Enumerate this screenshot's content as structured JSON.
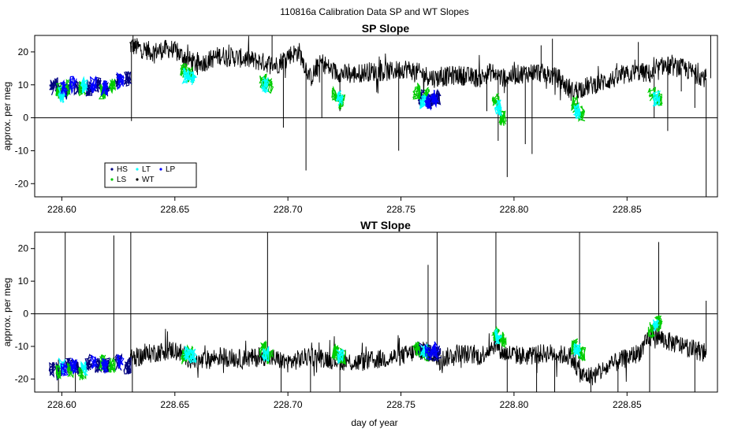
{
  "figure": {
    "suptitle": "110816a   Calibration Data SP and WT Slopes",
    "xlabel": "day of year"
  },
  "chart_data": [
    {
      "type": "line",
      "title": "SP Slope",
      "ylabel": "approx. per meg",
      "xlim": [
        228.588,
        228.89
      ],
      "ylim": [
        -24,
        25
      ],
      "xticks": [
        228.6,
        228.65,
        228.7,
        228.75,
        228.8,
        228.85
      ],
      "xtick_labels": [
        "228.60",
        "228.65",
        "228.70",
        "228.75",
        "228.80",
        "228.85"
      ],
      "yticks": [
        -20,
        -10,
        0,
        10,
        20
      ],
      "ytick_labels": [
        "-20",
        "-10",
        "0",
        "10",
        "20"
      ],
      "hline": 0,
      "legend": {
        "placement": "bottom-left",
        "entries": [
          {
            "label": "HS",
            "color": "#000080"
          },
          {
            "label": "LT",
            "color": "#00ffff"
          },
          {
            "label": "LP",
            "color": "#0000ff"
          },
          {
            "label": "LS",
            "color": "#00cc00"
          },
          {
            "label": "WT",
            "color": "#000000"
          }
        ]
      },
      "series": [
        {
          "name": "WT",
          "color": "#000000",
          "x": [
            228.63,
            228.64,
            228.648,
            228.66,
            228.67,
            228.68,
            228.688,
            228.695,
            228.7,
            228.705,
            228.71,
            228.715,
            228.72,
            228.728,
            228.735,
            228.745,
            228.752,
            228.765,
            228.775,
            228.785,
            228.79,
            228.795,
            228.8,
            228.81,
            228.82,
            228.825,
            228.835,
            228.845,
            228.855,
            228.862,
            228.866,
            228.875,
            228.885
          ],
          "y": [
            22,
            20,
            21,
            16,
            19,
            18,
            17,
            16,
            19,
            20,
            12,
            17,
            14,
            13,
            14,
            14,
            15,
            12,
            13,
            12,
            14,
            12,
            13,
            14,
            12,
            8,
            10,
            12,
            14,
            13,
            16,
            15,
            12
          ],
          "spikes": [
            [
              228.6308,
              -1
            ],
            [
              228.6315,
              25
            ],
            [
              228.66,
              13
            ],
            [
              228.693,
              25
            ],
            [
              228.698,
              -3
            ],
            [
              228.708,
              -16
            ],
            [
              228.715,
              0
            ],
            [
              228.723,
              2
            ],
            [
              228.749,
              -10
            ],
            [
              228.788,
              2
            ],
            [
              228.793,
              -7
            ],
            [
              228.797,
              -18
            ],
            [
              228.805,
              -8
            ],
            [
              228.808,
              -11
            ],
            [
              228.812,
              22
            ],
            [
              228.817,
              24
            ],
            [
              228.828,
              2
            ],
            [
              228.855,
              23
            ],
            [
              228.862,
              0
            ],
            [
              228.868,
              -4
            ],
            [
              228.874,
              8
            ],
            [
              228.88,
              3
            ],
            [
              228.885,
              -24
            ],
            [
              228.887,
              25
            ]
          ]
        },
        {
          "name": "HS",
          "color": "#000080",
          "x": [
            228.596,
            228.598,
            228.602,
            228.607,
            228.612,
            228.616,
            228.62,
            228.625,
            228.629,
            228.759,
            228.763,
            228.766
          ],
          "y": [
            9,
            10,
            8,
            9,
            9,
            10,
            9,
            11,
            12,
            6,
            5,
            6
          ]
        },
        {
          "name": "LS",
          "color": "#00cc00",
          "x": [
            228.599,
            228.603,
            228.609,
            228.618,
            228.622,
            228.654,
            228.657,
            228.689,
            228.692,
            228.721,
            228.724,
            228.757,
            228.761,
            228.792,
            228.795,
            228.827,
            228.83,
            228.861,
            228.864
          ],
          "y": [
            8,
            9,
            9,
            8,
            10,
            14,
            13,
            11,
            10,
            7,
            5,
            8,
            7,
            5,
            0,
            4,
            1,
            7,
            6
          ]
        },
        {
          "name": "LT",
          "color": "#00ffff",
          "x": [
            228.6,
            228.61,
            228.655,
            228.658,
            228.69,
            228.723,
            228.76,
            228.793,
            228.828,
            228.863
          ],
          "y": [
            7,
            10,
            13,
            12,
            10,
            6,
            5,
            3,
            2,
            6
          ]
        },
        {
          "name": "LP",
          "color": "#0000ff",
          "x": [
            228.601,
            228.605,
            228.614,
            228.619,
            228.626,
            228.762,
            228.765
          ],
          "y": [
            9,
            10,
            10,
            9,
            11,
            5,
            6
          ]
        }
      ]
    },
    {
      "type": "line",
      "title": "WT Slope",
      "ylabel": "approx. per meg",
      "xlim": [
        228.588,
        228.89
      ],
      "ylim": [
        -24,
        25
      ],
      "xticks": [
        228.6,
        228.65,
        228.7,
        228.75,
        228.8,
        228.85
      ],
      "xtick_labels": [
        "228.60",
        "228.65",
        "228.70",
        "228.75",
        "228.80",
        "228.85"
      ],
      "yticks": [
        -20,
        -10,
        0,
        10,
        20
      ],
      "ytick_labels": [
        "-20",
        "-10",
        "0",
        "10",
        "20"
      ],
      "hline": 0,
      "series": [
        {
          "name": "WT",
          "color": "#000000",
          "x": [
            228.63,
            228.64,
            228.65,
            228.66,
            228.67,
            228.68,
            228.69,
            228.7,
            228.71,
            228.72,
            228.73,
            228.74,
            228.75,
            228.76,
            228.768,
            228.775,
            228.785,
            228.792,
            228.795,
            228.805,
            228.815,
            228.825,
            228.83,
            228.835,
            228.845,
            228.855,
            228.862,
            228.866,
            228.875,
            228.885
          ],
          "y": [
            -14,
            -12,
            -11,
            -15,
            -13,
            -14,
            -13,
            -15,
            -13,
            -14,
            -15,
            -14,
            -13,
            -11,
            -14,
            -12,
            -13,
            -9,
            -12,
            -13,
            -12,
            -13,
            -19,
            -19,
            -15,
            -12,
            -6,
            -8,
            -10,
            -12
          ],
          "spikes": [
            [
              228.5985,
              -24
            ],
            [
              228.6015,
              25
            ],
            [
              228.606,
              -24
            ],
            [
              228.623,
              24
            ],
            [
              228.6305,
              25
            ],
            [
              228.6312,
              -24
            ],
            [
              228.691,
              25
            ],
            [
              228.697,
              -24
            ],
            [
              228.71,
              -24
            ],
            [
              228.723,
              -24
            ],
            [
              228.762,
              15
            ],
            [
              228.766,
              25
            ],
            [
              228.792,
              25
            ],
            [
              228.797,
              -24
            ],
            [
              228.81,
              -24
            ],
            [
              228.818,
              -24
            ],
            [
              228.829,
              25
            ],
            [
              228.834,
              -24
            ],
            [
              228.846,
              -24
            ],
            [
              228.86,
              -24
            ],
            [
              228.864,
              22
            ],
            [
              228.88,
              -24
            ],
            [
              228.885,
              4
            ]
          ]
        },
        {
          "name": "HS",
          "color": "#000080",
          "x": [
            228.596,
            228.599,
            228.603,
            228.607,
            228.612,
            228.616,
            228.62,
            228.625,
            228.629,
            228.759,
            228.763,
            228.766
          ],
          "y": [
            -17,
            -18,
            -16,
            -17,
            -15,
            -16,
            -16,
            -15,
            -16,
            -11,
            -12,
            -12
          ]
        },
        {
          "name": "LS",
          "color": "#00cc00",
          "x": [
            228.599,
            228.604,
            228.609,
            228.618,
            228.622,
            228.654,
            228.657,
            228.689,
            228.692,
            228.721,
            228.724,
            228.757,
            228.761,
            228.792,
            228.795,
            228.827,
            228.83,
            228.861,
            228.864
          ],
          "y": [
            -18,
            -17,
            -18,
            -15,
            -16,
            -13,
            -12,
            -11,
            -13,
            -12,
            -13,
            -11,
            -12,
            -6,
            -8,
            -10,
            -12,
            -5,
            -3
          ]
        },
        {
          "name": "LT",
          "color": "#00ffff",
          "x": [
            228.6,
            228.61,
            228.655,
            228.658,
            228.69,
            228.723,
            228.76,
            228.793,
            228.828,
            228.863
          ],
          "y": [
            -16,
            -17,
            -12,
            -13,
            -12,
            -13,
            -11,
            -7,
            -11,
            -4
          ]
        },
        {
          "name": "LP",
          "color": "#0000ff",
          "x": [
            228.601,
            228.605,
            228.614,
            228.619,
            228.626,
            228.762,
            228.765
          ],
          "y": [
            -17,
            -16,
            -15,
            -16,
            -15,
            -12,
            -11
          ]
        }
      ]
    }
  ]
}
